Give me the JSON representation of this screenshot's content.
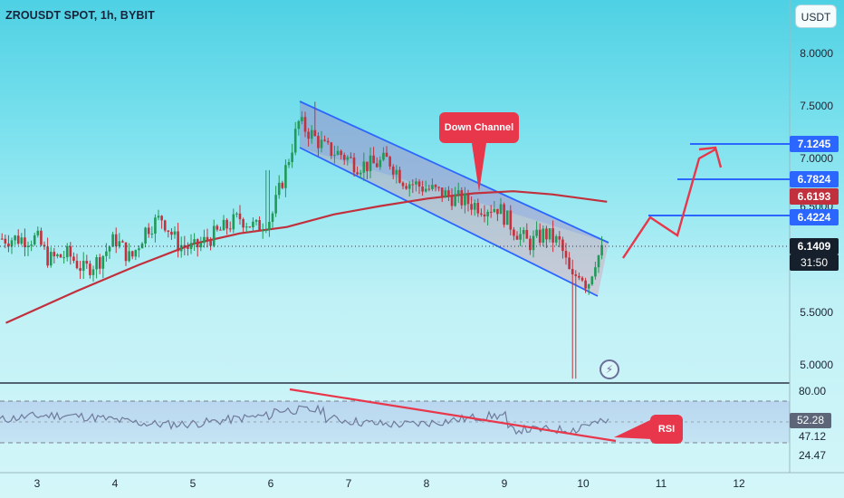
{
  "header": {
    "symbol_title": "ZROUSDT SPOT, 1h, BYBIT",
    "currency_button": "USDT"
  },
  "price_axis": {
    "ticks": [
      "8.0000",
      "7.5000",
      "7.0000",
      "6.5000",
      "5.5000",
      "5.0000"
    ],
    "tags": {
      "level_top": "7.1245",
      "level_mid": "6.7824",
      "ma_value": "6.6193",
      "level_low": "6.4224",
      "last_price": "6.1409",
      "countdown": "31:50"
    }
  },
  "rsi_axis": {
    "ticks": [
      "80.00",
      "47.12",
      "24.47"
    ],
    "current": "52.28"
  },
  "time_axis": [
    "3",
    "4",
    "5",
    "6",
    "7",
    "8",
    "9",
    "10",
    "11",
    "12"
  ],
  "annotations": {
    "channel_callout": "Down Channel",
    "rsi_callout": "RSI"
  },
  "colors": {
    "bull": "#1f9a57",
    "bear": "#c2313c",
    "ma": "#c1303c",
    "channel": "#2a66ff",
    "annotation": "#e8364a",
    "rsi_line": "#6f7a9a"
  },
  "chart_data": {
    "type": "candlestick",
    "title": "ZROUSDT SPOT, 1h, BYBIT",
    "ylim": [
      4.9,
      8.2
    ],
    "rsi_levels": [
      80,
      47.12,
      24.47
    ],
    "annotated_levels": [
      7.1245,
      6.7824,
      6.4224
    ],
    "moving_average_last": 6.6193,
    "last_price": 6.1409,
    "close_path": [
      [
        3,
        6.25
      ],
      [
        3.15,
        6.05
      ],
      [
        3.4,
        6.1
      ],
      [
        3.6,
        5.95
      ],
      [
        3.8,
        6.05
      ],
      [
        4.0,
        6.25
      ],
      [
        4.2,
        6.05
      ],
      [
        4.4,
        6.35
      ],
      [
        4.6,
        6.45
      ],
      [
        4.8,
        6.2
      ],
      [
        5.0,
        6.15
      ],
      [
        5.2,
        6.25
      ],
      [
        5.4,
        6.35
      ],
      [
        5.6,
        6.45
      ],
      [
        5.8,
        6.35
      ],
      [
        6.0,
        6.45
      ],
      [
        6.2,
        6.95
      ],
      [
        6.35,
        7.35
      ],
      [
        6.5,
        7.25
      ],
      [
        6.7,
        7.1
      ],
      [
        6.9,
        7.05
      ],
      [
        7.1,
        6.95
      ],
      [
        7.3,
        6.95
      ],
      [
        7.5,
        7.0
      ],
      [
        7.7,
        6.8
      ],
      [
        7.9,
        6.75
      ],
      [
        8.1,
        6.7
      ],
      [
        8.3,
        6.65
      ],
      [
        8.5,
        6.6
      ],
      [
        8.7,
        6.55
      ],
      [
        8.9,
        6.55
      ],
      [
        9.1,
        6.35
      ],
      [
        9.3,
        6.2
      ],
      [
        9.5,
        6.3
      ],
      [
        9.7,
        6.2
      ],
      [
        9.85,
        5.85
      ],
      [
        9.95,
        5.95
      ],
      [
        10.05,
        5.8
      ],
      [
        10.15,
        6.05
      ],
      [
        10.25,
        6.14
      ]
    ],
    "projection_path": [
      [
        10.4,
        6.0
      ],
      [
        10.75,
        6.42
      ],
      [
        11.2,
        6.3
      ],
      [
        11.5,
        6.78
      ],
      [
        11.85,
        7.12
      ],
      [
        11.95,
        6.95
      ]
    ]
  }
}
